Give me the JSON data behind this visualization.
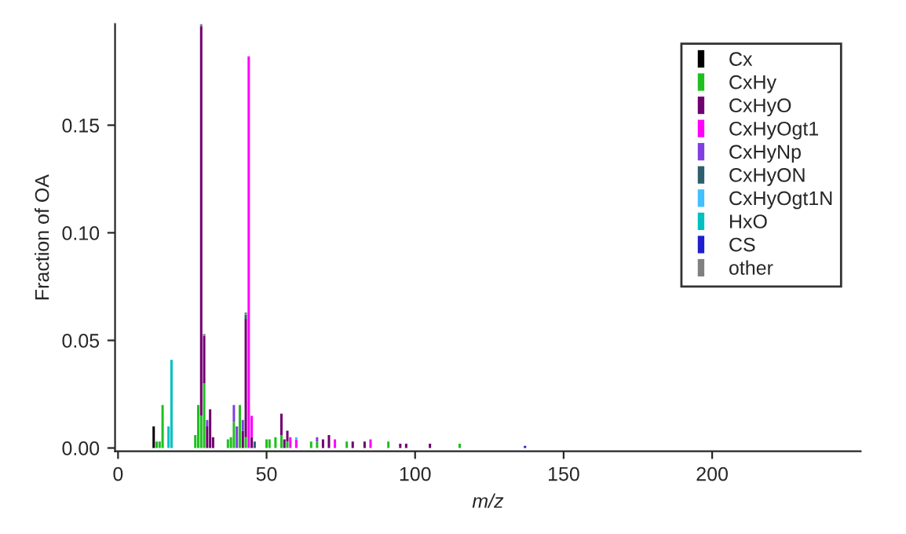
{
  "chart_data": {
    "type": "bar",
    "stacked": true,
    "xlabel": "m/z",
    "ylabel": "Fraction of OA",
    "x": [
      12,
      13,
      14,
      15,
      17,
      18,
      26,
      27,
      28,
      29,
      30,
      31,
      32,
      37,
      38,
      39,
      40,
      41,
      42,
      43,
      44,
      45,
      46,
      50,
      51,
      53,
      55,
      56,
      57,
      58,
      60,
      65,
      67,
      69,
      71,
      73,
      77,
      79,
      83,
      85,
      91,
      95,
      97,
      105,
      115,
      137
    ],
    "series": [
      {
        "name": "Cx",
        "color": "#000000",
        "values": [
          0.01,
          null,
          null,
          null,
          null,
          null,
          null,
          null,
          null,
          null,
          null,
          null,
          null,
          null,
          null,
          null,
          null,
          null,
          null,
          null,
          null,
          null,
          null,
          null,
          null,
          null,
          null,
          null,
          null,
          null,
          null,
          null,
          null,
          null,
          null,
          null,
          null,
          null,
          null,
          null,
          null,
          null,
          null,
          null,
          null,
          null
        ]
      },
      {
        "name": "CxHy",
        "color": "#1fbf1f",
        "values": [
          null,
          0.003,
          0.003,
          0.02,
          null,
          null,
          0.006,
          0.02,
          0.015,
          0.03,
          null,
          null,
          null,
          0.004,
          0.005,
          0.012,
          null,
          0.02,
          null,
          0.005,
          null,
          null,
          null,
          0.004,
          0.004,
          0.005,
          0.006,
          null,
          0.003,
          null,
          null,
          0.003,
          0.003,
          null,
          null,
          null,
          0.003,
          null,
          null,
          null,
          0.003,
          null,
          null,
          null,
          0.002,
          null
        ]
      },
      {
        "name": "CxHyO",
        "color": "#70006f",
        "values": [
          null,
          null,
          null,
          null,
          null,
          null,
          null,
          null,
          0.181,
          0.022,
          0.01,
          0.018,
          0.005,
          null,
          null,
          null,
          null,
          null,
          0.008,
          0.055,
          null,
          0.005,
          null,
          null,
          null,
          null,
          0.01,
          0.004,
          0.005,
          null,
          null,
          null,
          null,
          0.004,
          0.006,
          null,
          null,
          0.003,
          0.003,
          null,
          null,
          0.002,
          0.002,
          0.002,
          null,
          null
        ]
      },
      {
        "name": "CxHyOgt1",
        "color": "#ff00ff",
        "values": [
          null,
          null,
          null,
          null,
          null,
          null,
          null,
          null,
          null,
          null,
          null,
          null,
          null,
          null,
          null,
          null,
          null,
          null,
          null,
          null,
          0.182,
          0.01,
          null,
          null,
          null,
          null,
          null,
          null,
          null,
          0.005,
          0.004,
          null,
          null,
          null,
          null,
          0.004,
          null,
          null,
          null,
          0.004,
          null,
          null,
          null,
          null,
          null,
          null
        ]
      },
      {
        "name": "CxHyNp",
        "color": "#8040e0",
        "values": [
          null,
          null,
          null,
          null,
          null,
          null,
          null,
          null,
          null,
          null,
          0.003,
          null,
          null,
          null,
          null,
          0.008,
          0.01,
          null,
          0.005,
          null,
          null,
          null,
          null,
          null,
          null,
          null,
          null,
          null,
          null,
          null,
          null,
          null,
          0.002,
          null,
          null,
          null,
          null,
          null,
          null,
          null,
          null,
          null,
          null,
          null,
          null,
          null
        ]
      },
      {
        "name": "CxHyON",
        "color": "#2f5f6f",
        "values": [
          null,
          null,
          null,
          null,
          null,
          null,
          null,
          null,
          null,
          null,
          null,
          null,
          null,
          null,
          null,
          null,
          null,
          null,
          null,
          0.002,
          null,
          null,
          0.003,
          null,
          null,
          null,
          null,
          null,
          null,
          null,
          null,
          null,
          null,
          null,
          null,
          null,
          null,
          null,
          null,
          null,
          null,
          null,
          null,
          null,
          null,
          null
        ]
      },
      {
        "name": "CxHyOgt1N",
        "color": "#40c0ff",
        "values": [
          null,
          null,
          null,
          null,
          null,
          null,
          null,
          null,
          null,
          null,
          null,
          null,
          null,
          null,
          null,
          null,
          null,
          null,
          null,
          null,
          null,
          null,
          null,
          null,
          null,
          null,
          null,
          null,
          null,
          null,
          0.001,
          null,
          null,
          null,
          null,
          null,
          null,
          null,
          null,
          null,
          null,
          null,
          null,
          null,
          null,
          null
        ]
      },
      {
        "name": "HxO",
        "color": "#00c0c0",
        "values": [
          null,
          null,
          null,
          null,
          0.01,
          0.041,
          null,
          null,
          null,
          null,
          null,
          null,
          null,
          null,
          null,
          null,
          null,
          null,
          null,
          null,
          null,
          null,
          null,
          null,
          null,
          null,
          null,
          null,
          null,
          null,
          null,
          null,
          null,
          null,
          null,
          null,
          null,
          null,
          null,
          null,
          null,
          null,
          null,
          null,
          null,
          null
        ]
      },
      {
        "name": "CS",
        "color": "#1f1fd0",
        "values": [
          null,
          null,
          null,
          null,
          null,
          null,
          null,
          null,
          null,
          null,
          null,
          null,
          null,
          null,
          null,
          null,
          null,
          null,
          null,
          null,
          null,
          null,
          null,
          null,
          null,
          null,
          null,
          null,
          null,
          null,
          null,
          null,
          null,
          null,
          null,
          null,
          null,
          null,
          null,
          null,
          null,
          null,
          null,
          null,
          null,
          0.001
        ]
      },
      {
        "name": "other",
        "color": "#808080",
        "values": [
          null,
          null,
          null,
          null,
          null,
          null,
          null,
          null,
          0.001,
          0.001,
          null,
          null,
          null,
          null,
          null,
          null,
          null,
          null,
          null,
          0.001,
          null,
          null,
          null,
          null,
          null,
          null,
          null,
          null,
          null,
          null,
          null,
          null,
          null,
          null,
          null,
          null,
          null,
          null,
          null,
          null,
          null,
          null,
          null,
          null,
          null,
          null
        ]
      }
    ],
    "xlim": [
      -1,
      250
    ],
    "ylim": [
      -0.0015,
      0.197
    ],
    "xticks": [
      0,
      50,
      100,
      150,
      200
    ],
    "yticks": [
      {
        "value": 0,
        "label": "0.00"
      },
      {
        "value": 0.05,
        "label": "0.05"
      },
      {
        "value": 0.1,
        "label": "0.10"
      },
      {
        "value": 0.15,
        "label": "0.15"
      }
    ],
    "legend": "top right",
    "grid": false
  }
}
